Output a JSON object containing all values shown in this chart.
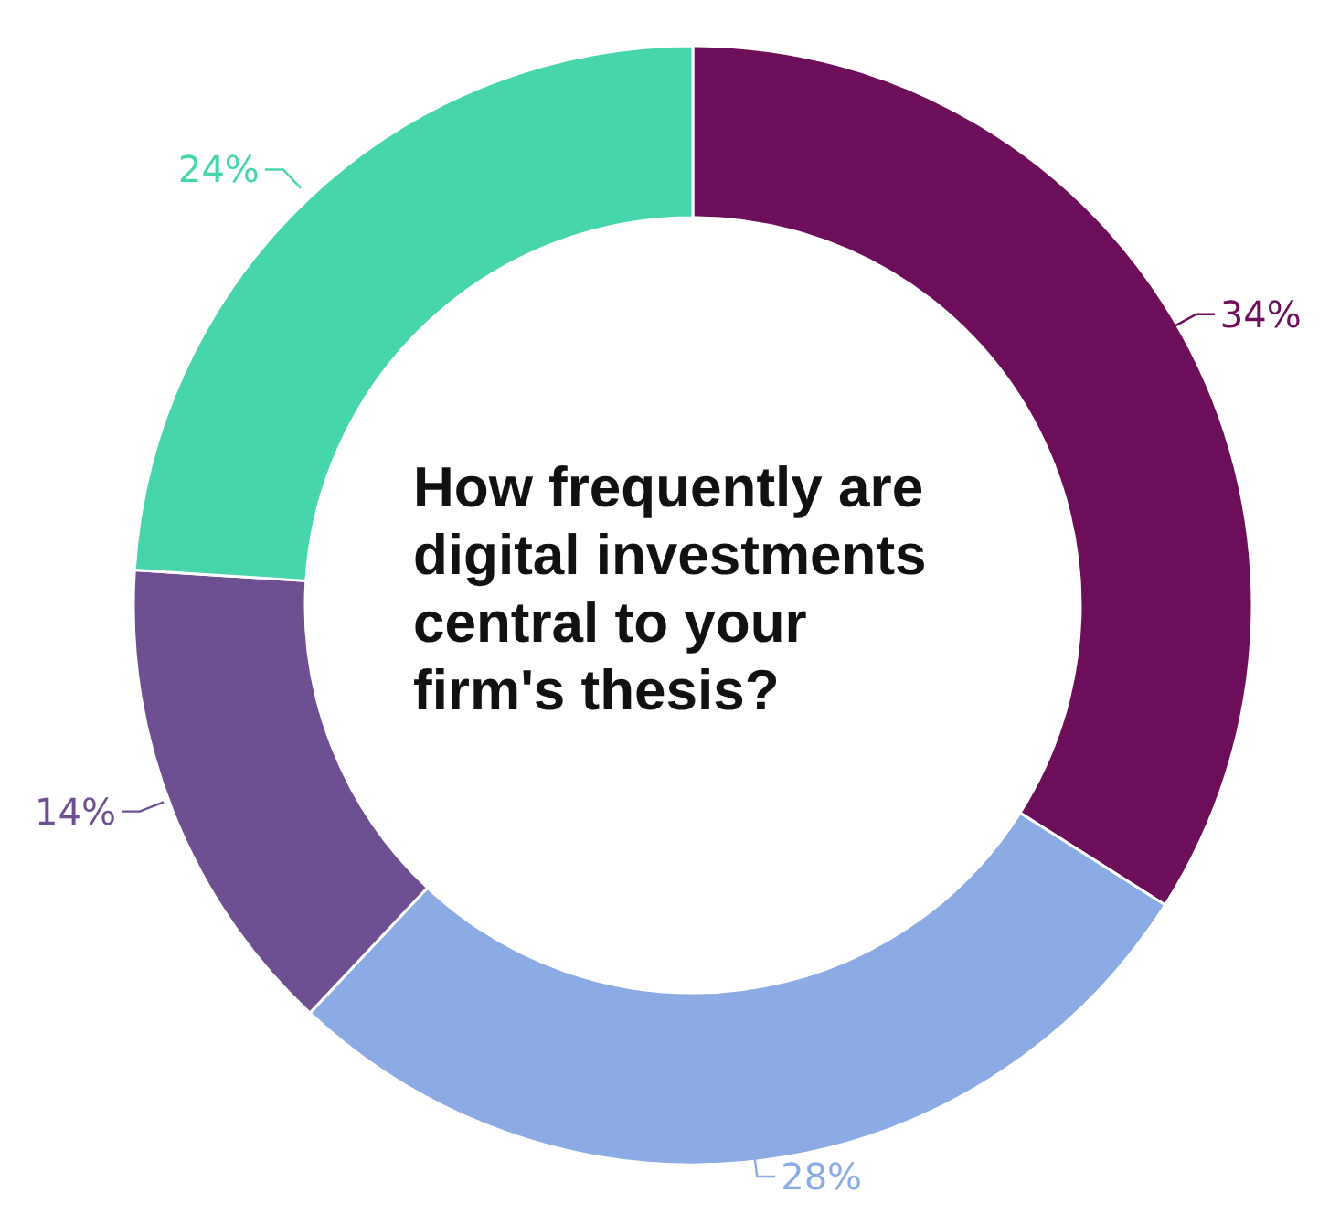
{
  "chart_data": {
    "type": "donut",
    "title": "How frequently are digital investments central to your firm's thesis?",
    "categories": [
      null,
      null,
      null,
      null
    ],
    "values": [
      34,
      28,
      14,
      24
    ],
    "colors": [
      "#6d0e5a",
      "#8aabe3",
      "#6e4f92",
      "#47d6ac"
    ],
    "value_labels": [
      "34%",
      "28%",
      "14%",
      "24%"
    ],
    "legend": false
  }
}
